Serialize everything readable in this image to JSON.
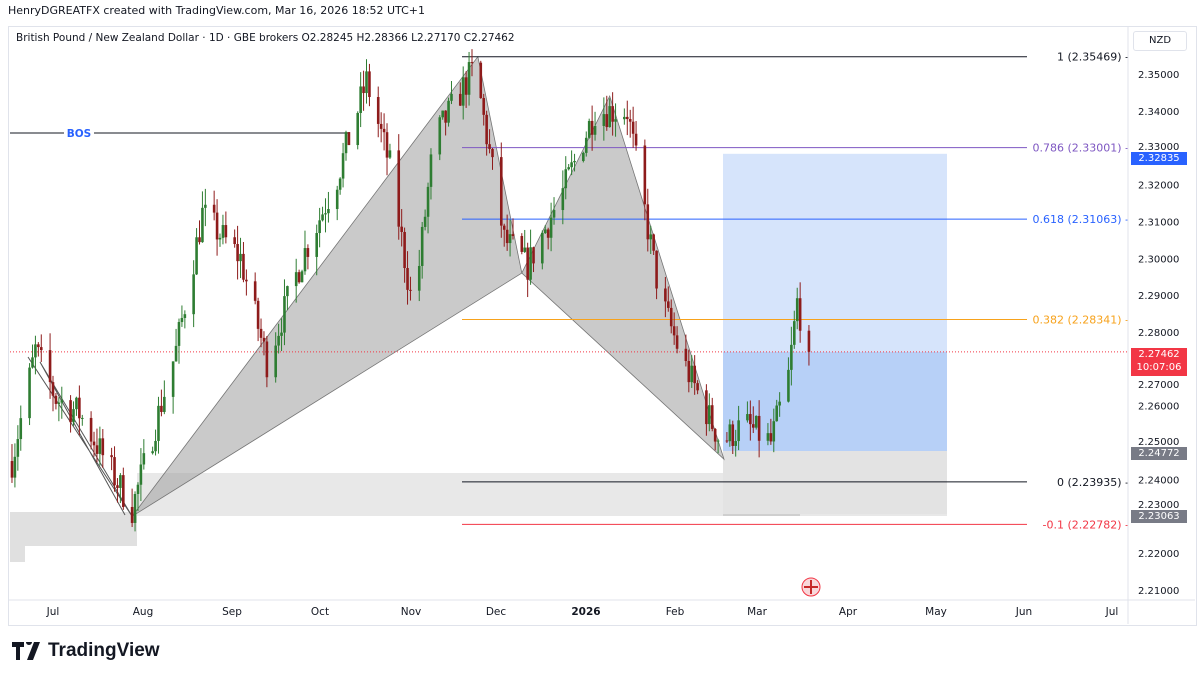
{
  "credit": "HenryDGREATFX created with TradingView.com, Mar 16, 2026 18:52 UTC+1",
  "legend": "British Pound / New Zealand Dollar · 1D · GBE brokers  O2.28245  H2.28366  L2.27170  C2.27462",
  "currency": "NZD",
  "footer_logo": "TradingView",
  "colors": {
    "up": "#2e7d32",
    "down": "#8e1b1b",
    "fib1": "#131722",
    "fib786": "#7e57c2",
    "fib618": "#2962ff",
    "fib382": "#f7a21b",
    "fib0": "#131722",
    "fibm01": "#f23645",
    "bos": "#2962ff",
    "last": "#f23645"
  },
  "chart_data": {
    "type": "candlestick",
    "symbol": "GBPNZD",
    "interval": "1D",
    "ylim": [
      2.205,
      2.358
    ],
    "y_ticks": [
      "2.35000",
      "2.34000",
      "2.33000",
      "2.32000",
      "2.31000",
      "2.30000",
      "2.29000",
      "2.28000",
      "2.27000",
      "2.26000",
      "2.25000",
      "2.24000",
      "2.23000",
      "2.22000",
      "2.21000"
    ],
    "x_ticks": [
      "Jul",
      "Aug",
      "Sep",
      "Oct",
      "Nov",
      "Dec",
      "2026",
      "Feb",
      "Mar",
      "Apr",
      "May",
      "Jun",
      "Jul"
    ],
    "approx_closes": [
      [
        "2025-06-17",
        2.245
      ],
      [
        "2025-06-25",
        2.275
      ],
      [
        "2025-07-02",
        2.262
      ],
      [
        "2025-07-10",
        2.258
      ],
      [
        "2025-07-28",
        2.232
      ],
      [
        "2025-08-12",
        2.275
      ],
      [
        "2025-08-21",
        2.312
      ],
      [
        "2025-09-03",
        2.3
      ],
      [
        "2025-09-12",
        2.272
      ],
      [
        "2025-09-24",
        2.3
      ],
      [
        "2025-10-06",
        2.322
      ],
      [
        "2025-10-16",
        2.348
      ],
      [
        "2025-10-24",
        2.325
      ],
      [
        "2025-11-01",
        2.285
      ],
      [
        "2025-11-08",
        2.332
      ],
      [
        "2025-11-22",
        2.352
      ],
      [
        "2025-12-02",
        2.305
      ],
      [
        "2025-12-10",
        2.298
      ],
      [
        "2025-12-22",
        2.318
      ],
      [
        "2026-01-02",
        2.34
      ],
      [
        "2026-01-13",
        2.34
      ],
      [
        "2026-01-24",
        2.29
      ],
      [
        "2026-02-01",
        2.272
      ],
      [
        "2026-02-14",
        2.25
      ],
      [
        "2026-02-22",
        2.255
      ],
      [
        "2026-03-03",
        2.25
      ],
      [
        "2026-03-09",
        2.268
      ],
      [
        "2026-03-12",
        2.288
      ],
      [
        "2026-03-16",
        2.2746
      ]
    ],
    "last": {
      "price": "2.27462",
      "countdown": "10:07:06"
    },
    "fib_levels": [
      {
        "label": "1 (2.35469) -",
        "price": 2.35469,
        "color": "fib1"
      },
      {
        "label": "0.786 (2.33001) -",
        "price": 2.33001,
        "color": "fib786"
      },
      {
        "label": "0.618 (2.31063) -",
        "price": 2.31063,
        "color": "fib618"
      },
      {
        "label": "0.382 (2.28341) -",
        "price": 2.28341,
        "color": "fib382"
      },
      {
        "label": "0 (2.23935) -",
        "price": 2.23935,
        "color": "fib0"
      },
      {
        "label": "-0.1 (2.22782) -",
        "price": 2.22782,
        "color": "fibm01"
      }
    ],
    "bos": {
      "label": "BOS",
      "price": 2.334
    },
    "position": {
      "target": "2.32835",
      "stop_zone_top": "2.24772",
      "stop_zone_bottom": "2.23063"
    },
    "harmonic_points": [
      [
        "2025-07-28",
        2.23
      ],
      [
        "2025-11-23",
        2.3547
      ],
      [
        "2025-12-08",
        2.296
      ],
      [
        "2026-01-07",
        2.344
      ],
      [
        "2026-02-15",
        2.2455
      ]
    ]
  }
}
